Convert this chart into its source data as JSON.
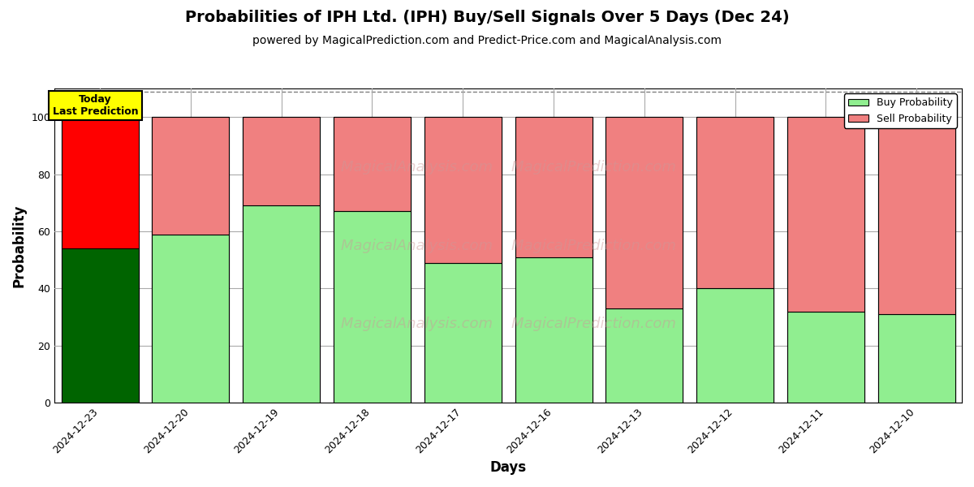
{
  "title": "Probabilities of IPH Ltd. (IPH) Buy/Sell Signals Over 5 Days (Dec 24)",
  "subtitle": "powered by MagicalPrediction.com and Predict-Price.com and MagicalAnalysis.com",
  "xlabel": "Days",
  "ylabel": "Probability",
  "days": [
    "2024-12-23",
    "2024-12-20",
    "2024-12-19",
    "2024-12-18",
    "2024-12-17",
    "2024-12-16",
    "2024-12-13",
    "2024-12-12",
    "2024-12-11",
    "2024-12-10"
  ],
  "buy_values": [
    54,
    59,
    69,
    67,
    49,
    51,
    33,
    40,
    32,
    31
  ],
  "sell_values": [
    46,
    41,
    31,
    33,
    51,
    49,
    67,
    60,
    68,
    69
  ],
  "buy_colors": [
    "#006400",
    "#90EE90",
    "#90EE90",
    "#90EE90",
    "#90EE90",
    "#90EE90",
    "#90EE90",
    "#90EE90",
    "#90EE90",
    "#90EE90"
  ],
  "sell_colors": [
    "#FF0000",
    "#F08080",
    "#F08080",
    "#F08080",
    "#F08080",
    "#F08080",
    "#F08080",
    "#F08080",
    "#F08080",
    "#F08080"
  ],
  "legend_buy_color": "#90EE90",
  "legend_sell_color": "#F08080",
  "today_label": "Today\nLast Prediction",
  "today_bg_color": "#FFFF00",
  "ylim": [
    0,
    110
  ],
  "yticks": [
    0,
    20,
    40,
    60,
    80,
    100
  ],
  "dashed_line_y": 109,
  "bar_width": 0.85,
  "figsize": [
    12,
    6
  ],
  "dpi": 100,
  "background_color": "#ffffff",
  "grid_color": "#aaaaaa",
  "title_fontsize": 14,
  "subtitle_fontsize": 10,
  "axis_label_fontsize": 12,
  "tick_fontsize": 9,
  "watermark1_text": "MagicalAnalysis.com",
  "watermark2_text": "MagicalPrediction.com",
  "watermark3_text": "MagicalPrediction.com"
}
